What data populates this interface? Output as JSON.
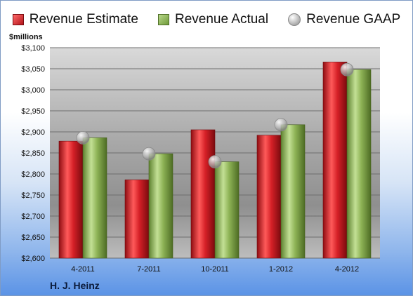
{
  "company": "H. J. Heinz",
  "units": "$millions",
  "legend": [
    "Revenue Estimate",
    "Revenue Actual",
    "Revenue GAAP"
  ],
  "colors": {
    "estimate": "#cc2026",
    "actual": "#8db255",
    "gaap": "#b0b0b0"
  },
  "chart_data": {
    "type": "bar",
    "title": "",
    "ylabel": "$millions",
    "categories": [
      "4-2011",
      "7-2011",
      "10-2011",
      "1-2012",
      "4-2012"
    ],
    "series": [
      {
        "name": "Revenue Estimate",
        "type": "bar",
        "values": [
          2878,
          2786,
          2905,
          2892,
          3066
        ]
      },
      {
        "name": "Revenue Actual",
        "type": "bar",
        "values": [
          2886,
          2848,
          2829,
          2917,
          3048
        ]
      },
      {
        "name": "Revenue GAAP",
        "type": "marker",
        "values": [
          2886,
          2848,
          2829,
          2917,
          3048
        ]
      }
    ],
    "ylim": [
      2600,
      3100
    ],
    "yticks": [
      "$2,600",
      "$2,650",
      "$2,700",
      "$2,750",
      "$2,800",
      "$2,850",
      "$2,900",
      "$2,950",
      "$3,000",
      "$3,050",
      "$3,100"
    ],
    "ytick_values": [
      2600,
      2650,
      2700,
      2750,
      2800,
      2850,
      2900,
      2950,
      3000,
      3050,
      3100
    ],
    "grid": true,
    "legend_position": "top"
  }
}
